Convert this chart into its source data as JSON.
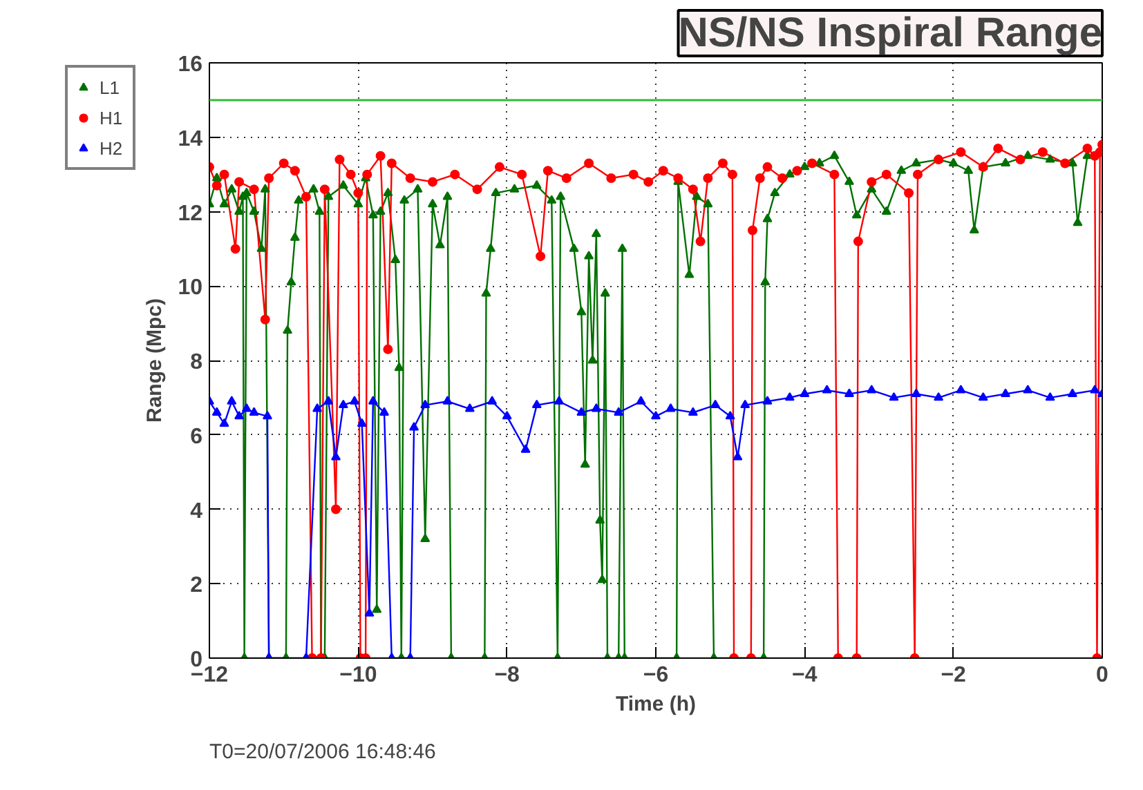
{
  "chart_data": {
    "type": "line",
    "title": "NS/NS Inspiral Range",
    "xlabel": "Time (h)",
    "ylabel": "Range (Mpc)",
    "annotations": [
      "T0=20/07/2006 16:48:46"
    ],
    "xlim": [
      -12,
      0
    ],
    "xticks": [
      -12,
      -10,
      -8,
      -6,
      -4,
      -2,
      0
    ],
    "ylim": [
      0,
      16
    ],
    "yticks": [
      0,
      2,
      4,
      6,
      8,
      10,
      12,
      14,
      16
    ],
    "grid": true,
    "legend": "top left",
    "line_style": "solid",
    "ref_lines": [
      {
        "axis": "y",
        "value": 15,
        "color": "#33bb33"
      }
    ],
    "series": [
      {
        "name": "L1",
        "color": "#007000",
        "marker": "triangle",
        "x": [
          -12.0,
          -11.9,
          -11.8,
          -11.7,
          -11.6,
          -11.55,
          -11.53,
          -11.5,
          -11.4,
          -11.3,
          -11.25,
          -11.2,
          -10.97,
          -10.95,
          -10.9,
          -10.85,
          -10.8,
          -10.6,
          -10.52,
          -10.5,
          -10.45,
          -10.4,
          -10.2,
          -10.0,
          -9.9,
          -9.8,
          -9.75,
          -9.7,
          -9.6,
          -9.5,
          -9.45,
          -9.42,
          -9.38,
          -9.2,
          -9.1,
          -9.0,
          -8.9,
          -8.8,
          -8.75,
          -8.3,
          -8.28,
          -8.22,
          -8.15,
          -7.9,
          -7.6,
          -7.4,
          -7.32,
          -7.28,
          -7.1,
          -7.0,
          -6.95,
          -6.9,
          -6.85,
          -6.8,
          -6.75,
          -6.72,
          -6.68,
          -6.65,
          -6.5,
          -6.45,
          -6.42,
          -5.72,
          -5.7,
          -5.55,
          -5.45,
          -5.3,
          -5.22,
          -4.55,
          -4.53,
          -4.5,
          -4.4,
          -4.2,
          -4.0,
          -3.8,
          -3.6,
          -3.4,
          -3.3,
          -3.1,
          -2.9,
          -2.7,
          -2.5,
          -2.2,
          -2.0,
          -1.8,
          -1.72,
          -1.6,
          -1.3,
          -1.0,
          -0.7,
          -0.4,
          -0.33,
          -0.2,
          0.0
        ],
        "values": [
          12.2,
          12.9,
          12.2,
          12.6,
          12.0,
          12.4,
          0,
          12.5,
          12.0,
          11.0,
          12.6,
          0,
          0,
          8.8,
          10.1,
          11.3,
          12.3,
          12.6,
          12.0,
          0,
          0,
          12.4,
          12.7,
          12.2,
          12.9,
          11.9,
          1.3,
          12.0,
          12.5,
          10.7,
          7.8,
          0,
          12.3,
          12.6,
          3.2,
          12.2,
          11.1,
          12.4,
          0,
          0,
          9.8,
          11.0,
          12.5,
          12.6,
          12.7,
          12.3,
          0,
          12.4,
          11.0,
          9.3,
          5.2,
          10.8,
          8.0,
          11.4,
          3.7,
          2.1,
          9.8,
          0,
          0,
          11.0,
          0,
          0,
          12.8,
          10.3,
          12.4,
          12.2,
          0,
          0,
          10.1,
          11.8,
          12.5,
          13.0,
          13.2,
          13.3,
          13.5,
          12.8,
          11.9,
          12.6,
          12.0,
          13.1,
          13.3,
          13.4,
          13.3,
          13.1,
          11.5,
          13.2,
          13.3,
          13.5,
          13.4,
          13.3,
          11.7,
          13.5,
          13.6
        ]
      },
      {
        "name": "H1",
        "color": "#ff0000",
        "marker": "circle",
        "x": [
          -12.0,
          -11.9,
          -11.8,
          -11.65,
          -11.6,
          -11.4,
          -11.25,
          -11.2,
          -11.0,
          -10.85,
          -10.7,
          -10.62,
          -10.5,
          -10.45,
          -10.3,
          -10.25,
          -10.1,
          -10.0,
          -9.97,
          -9.9,
          -9.88,
          -9.7,
          -9.6,
          -9.55,
          -9.3,
          -9.0,
          -8.7,
          -8.4,
          -8.1,
          -7.8,
          -7.55,
          -7.45,
          -7.2,
          -6.9,
          -6.6,
          -6.3,
          -6.1,
          -5.9,
          -5.7,
          -5.5,
          -5.4,
          -5.3,
          -5.1,
          -4.97,
          -4.95,
          -4.72,
          -4.7,
          -4.6,
          -4.5,
          -4.3,
          -4.1,
          -3.9,
          -3.6,
          -3.55,
          -3.3,
          -3.28,
          -3.1,
          -2.9,
          -2.6,
          -2.52,
          -2.48,
          -2.2,
          -1.9,
          -1.6,
          -1.4,
          -1.1,
          -0.8,
          -0.5,
          -0.2,
          -0.1,
          -0.07,
          -0.03,
          0.0
        ],
        "values": [
          13.2,
          12.7,
          13.0,
          11.0,
          12.8,
          12.6,
          9.1,
          12.9,
          13.3,
          13.1,
          12.4,
          0,
          0,
          12.6,
          4.0,
          13.4,
          13.0,
          12.5,
          0,
          0,
          13.0,
          13.5,
          8.3,
          13.3,
          12.9,
          12.8,
          13.0,
          12.6,
          13.2,
          13.0,
          10.8,
          13.1,
          12.9,
          13.3,
          12.9,
          13.0,
          12.8,
          13.1,
          12.9,
          12.6,
          11.2,
          12.9,
          13.3,
          13.0,
          0,
          0,
          11.5,
          12.9,
          13.2,
          12.9,
          13.1,
          13.3,
          13.0,
          0,
          0,
          11.2,
          12.8,
          13.0,
          12.5,
          0,
          13.0,
          13.4,
          13.6,
          13.2,
          13.7,
          13.4,
          13.6,
          13.3,
          13.7,
          13.5,
          0,
          13.6,
          13.8
        ]
      },
      {
        "name": "H2",
        "color": "#0000ff",
        "marker": "triangle",
        "x": [
          -12.0,
          -11.9,
          -11.8,
          -11.7,
          -11.6,
          -11.5,
          -11.4,
          -11.22,
          -11.2,
          -10.7,
          -10.55,
          -10.4,
          -10.3,
          -10.2,
          -10.05,
          -9.95,
          -9.85,
          -9.8,
          -9.65,
          -9.55,
          -9.3,
          -9.25,
          -9.1,
          -8.8,
          -8.5,
          -8.2,
          -8.0,
          -7.75,
          -7.6,
          -7.3,
          -7.0,
          -6.8,
          -6.5,
          -6.2,
          -6.0,
          -5.8,
          -5.5,
          -5.2,
          -5.0,
          -4.9,
          -4.8,
          -4.5,
          -4.2,
          -4.0,
          -3.7,
          -3.4,
          -3.1,
          -2.8,
          -2.5,
          -2.2,
          -1.9,
          -1.6,
          -1.3,
          -1.0,
          -0.7,
          -0.4,
          -0.1,
          0.0
        ],
        "values": [
          6.9,
          6.6,
          6.3,
          6.9,
          6.5,
          6.7,
          6.6,
          6.5,
          0,
          0,
          6.7,
          6.9,
          5.4,
          6.8,
          6.9,
          6.3,
          1.2,
          6.9,
          6.6,
          0,
          0,
          6.2,
          6.8,
          6.9,
          6.7,
          6.9,
          6.5,
          5.6,
          6.8,
          6.9,
          6.6,
          6.7,
          6.6,
          6.9,
          6.5,
          6.7,
          6.6,
          6.8,
          6.5,
          5.4,
          6.8,
          6.9,
          7.0,
          7.1,
          7.2,
          7.1,
          7.2,
          7.0,
          7.1,
          7.0,
          7.2,
          7.0,
          7.1,
          7.2,
          7.0,
          7.1,
          7.2,
          7.1
        ]
      }
    ]
  }
}
